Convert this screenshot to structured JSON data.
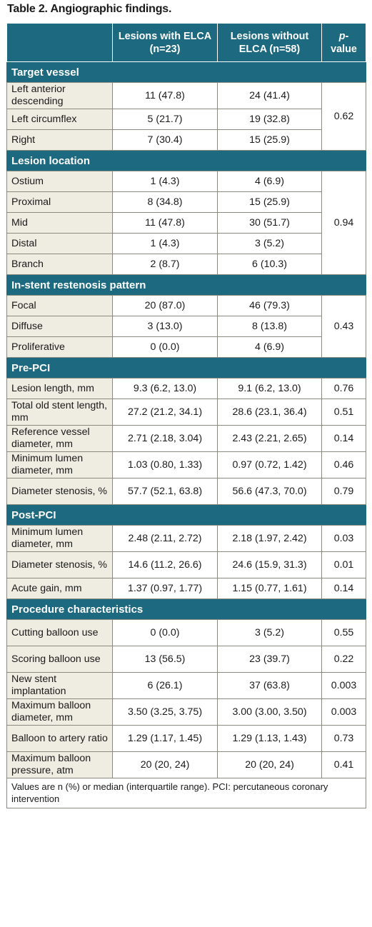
{
  "title": "Table 2. Angiographic findings.",
  "header": {
    "col1": "Lesions with ELCA (n=23)",
    "col2": "Lesions without ELCA (n=58)",
    "p_italic": "p",
    "p_rest": "-value"
  },
  "sections": [
    {
      "title": "Target vessel",
      "rows": [
        {
          "label": "Left anterior descending",
          "with": "11 (47.8)",
          "without": "24 (41.4)"
        },
        {
          "label": "Left circumflex",
          "with": "5 (21.7)",
          "without": "19 (32.8)"
        },
        {
          "label": "Right",
          "with": "7 (30.4)",
          "without": "15 (25.9)"
        }
      ],
      "p": "0.62"
    },
    {
      "title": "Lesion location",
      "rows": [
        {
          "label": "Ostium",
          "with": "1 (4.3)",
          "without": "4 (6.9)"
        },
        {
          "label": "Proximal",
          "with": "8 (34.8)",
          "without": "15 (25.9)"
        },
        {
          "label": "Mid",
          "with": "11 (47.8)",
          "without": "30 (51.7)"
        },
        {
          "label": "Distal",
          "with": "1 (4.3)",
          "without": "3 (5.2)"
        },
        {
          "label": "Branch",
          "with": "2 (8.7)",
          "without": "6 (10.3)"
        }
      ],
      "p": "0.94"
    },
    {
      "title": "In-stent restenosis pattern",
      "rows": [
        {
          "label": "Focal",
          "with": "20 (87.0)",
          "without": "46 (79.3)"
        },
        {
          "label": "Diffuse",
          "with": "3 (13.0)",
          "without": "8 (13.8)"
        },
        {
          "label": "Proliferative",
          "with": "0 (0.0)",
          "without": "4 (6.9)"
        }
      ],
      "p": "0.43"
    },
    {
      "title": "Pre-PCI",
      "rows": [
        {
          "label": "Lesion length, mm",
          "with": "9.3 (6.2, 13.0)",
          "without": "9.1 (6.2, 13.0)",
          "p": "0.76"
        },
        {
          "label": "Total old stent length, mm",
          "with": "27.2 (21.2, 34.1)",
          "without": "28.6 (23.1, 36.4)",
          "p": "0.51"
        },
        {
          "label": "Reference vessel diameter, mm",
          "with": "2.71 (2.18, 3.04)",
          "without": "2.43 (2.21, 2.65)",
          "p": "0.14"
        },
        {
          "label": "Minimum lumen diameter, mm",
          "with": "1.03 (0.80, 1.33)",
          "without": "0.97 (0.72, 1.42)",
          "p": "0.46"
        },
        {
          "label": "Diameter stenosis, %",
          "with": "57.7 (52.1, 63.8)",
          "without": "56.6 (47.3, 70.0)",
          "p": "0.79"
        }
      ]
    },
    {
      "title": "Post-PCI",
      "rows": [
        {
          "label": "Minimum lumen diameter, mm",
          "with": "2.48 (2.11, 2.72)",
          "without": "2.18 (1.97, 2.42)",
          "p": "0.03"
        },
        {
          "label": "Diameter stenosis, %",
          "with": "14.6 (11.2, 26.6)",
          "without": "24.6 (15.9, 31.3)",
          "p": "0.01"
        },
        {
          "label": "Acute gain, mm",
          "with": "1.37 (0.97, 1.77)",
          "without": "1.15 (0.77, 1.61)",
          "p": "0.14"
        }
      ]
    },
    {
      "title": "Procedure characteristics",
      "rows": [
        {
          "label": "Cutting balloon use",
          "with": "0 (0.0)",
          "without": "3 (5.2)",
          "p": "0.55"
        },
        {
          "label": "Scoring balloon use",
          "with": "13 (56.5)",
          "without": "23 (39.7)",
          "p": "0.22"
        },
        {
          "label": "New stent implantation",
          "with": "6 (26.1)",
          "without": "37 (63.8)",
          "p": "0.003"
        },
        {
          "label": "Maximum balloon diameter, mm",
          "with": "3.50 (3.25, 3.75)",
          "without": "3.00 (3.00, 3.50)",
          "p": "0.003"
        },
        {
          "label": "Balloon to artery ratio",
          "with": "1.29 (1.17, 1.45)",
          "without": "1.29 (1.13, 1.43)",
          "p": "0.73"
        },
        {
          "label": "Maximum balloon pressure, atm",
          "with": "20 (20, 24)",
          "without": "20 (20, 24)",
          "p": "0.41"
        }
      ]
    }
  ],
  "footnote": "Values are n (%) or median (interquartile range). PCI: percutaneous coronary intervention",
  "colors": {
    "header_bg": "#1d6a80",
    "label_bg": "#efece2",
    "border": "#8a8a80"
  }
}
